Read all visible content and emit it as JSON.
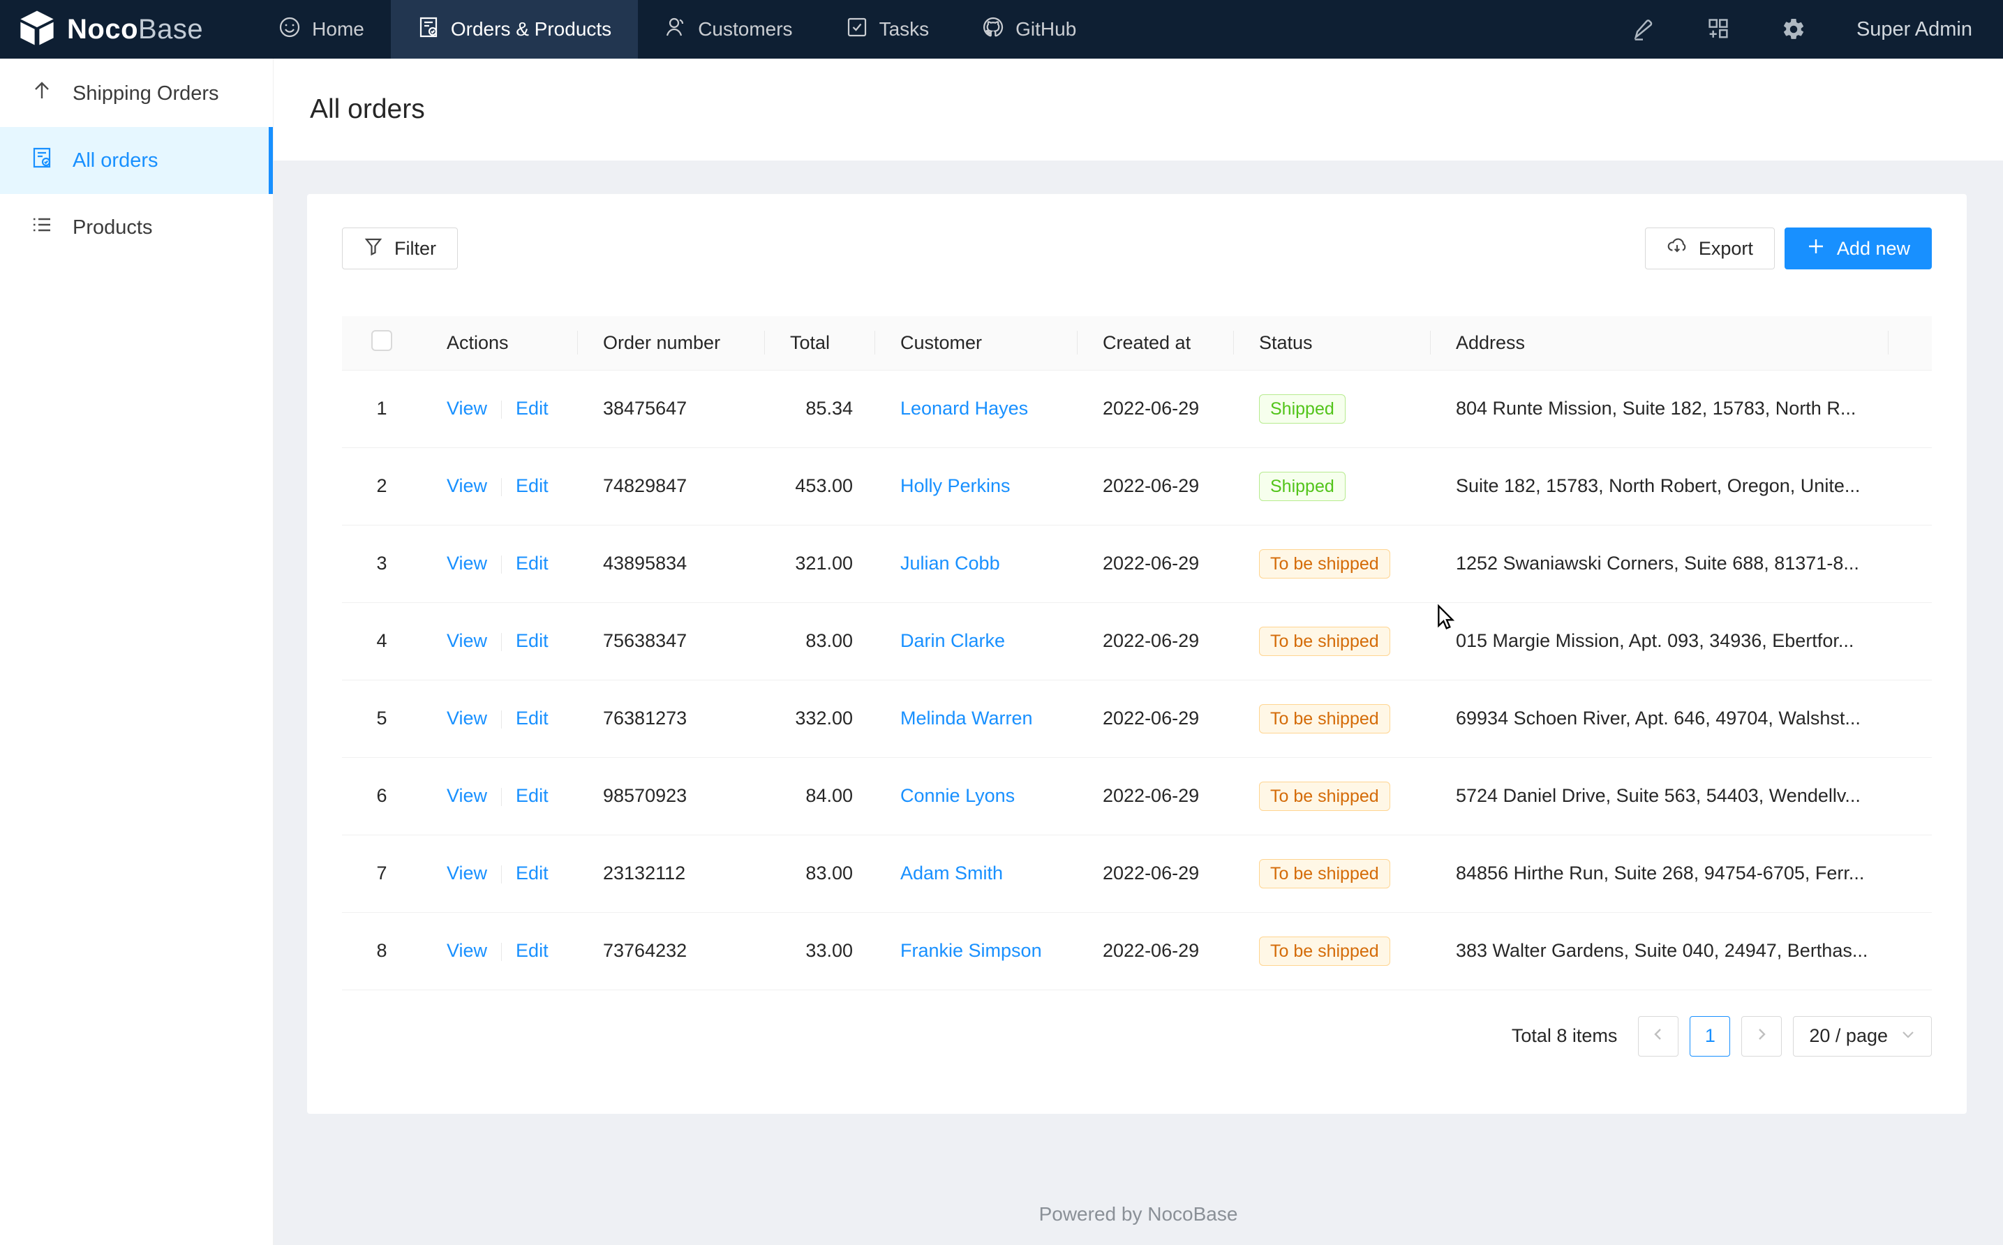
{
  "navbar": {
    "logo": {
      "bold": "Noco",
      "light": "Base",
      "icon": "cube-logo-icon"
    },
    "tabs": [
      {
        "label": "Home",
        "icon": "smile-icon",
        "active": false
      },
      {
        "label": "Orders & Products",
        "icon": "file-check-icon",
        "active": true
      },
      {
        "label": "Customers",
        "icon": "person-icon",
        "active": false
      },
      {
        "label": "Tasks",
        "icon": "check-square-icon",
        "active": false
      },
      {
        "label": "GitHub",
        "icon": "github-icon",
        "active": false
      }
    ],
    "right_icons": [
      "highlighter-icon",
      "add-block-icon",
      "settings-gear-icon"
    ],
    "user": "Super Admin"
  },
  "sidebar": {
    "items": [
      {
        "label": "Shipping Orders",
        "icon": "arrow-up-icon",
        "active": false
      },
      {
        "label": "All orders",
        "icon": "file-check-icon",
        "active": true
      },
      {
        "label": "Products",
        "icon": "list-icon",
        "active": false
      }
    ]
  },
  "page": {
    "title": "All orders"
  },
  "toolbar": {
    "filter_label": "Filter",
    "export_label": "Export",
    "add_new_label": "Add new"
  },
  "table": {
    "columns": [
      "",
      "Actions",
      "Order number",
      "Total",
      "Customer",
      "Created at",
      "Status",
      "Address",
      ""
    ],
    "action_labels": {
      "view": "View",
      "edit": "Edit"
    },
    "rows": [
      {
        "index": 1,
        "order_number": "38475647",
        "total": "85.34",
        "customer": "Leonard Hayes",
        "created_at": "2022-06-29",
        "status": {
          "label": "Shipped",
          "type": "shipped"
        },
        "address": "804 Runte Mission, Suite 182, 15783, North R..."
      },
      {
        "index": 2,
        "order_number": "74829847",
        "total": "453.00",
        "customer": "Holly Perkins",
        "created_at": "2022-06-29",
        "status": {
          "label": "Shipped",
          "type": "shipped"
        },
        "address": "Suite 182, 15783, North Robert, Oregon, Unite..."
      },
      {
        "index": 3,
        "order_number": "43895834",
        "total": "321.00",
        "customer": "Julian Cobb",
        "created_at": "2022-06-29",
        "status": {
          "label": "To be shipped",
          "type": "to-be-shipped"
        },
        "address": "1252 Swaniawski Corners, Suite 688, 81371-8..."
      },
      {
        "index": 4,
        "order_number": "75638347",
        "total": "83.00",
        "customer": "Darin Clarke",
        "created_at": "2022-06-29",
        "status": {
          "label": "To be shipped",
          "type": "to-be-shipped"
        },
        "address": "015 Margie Mission, Apt. 093, 34936, Ebertfor..."
      },
      {
        "index": 5,
        "order_number": "76381273",
        "total": "332.00",
        "customer": "Melinda Warren",
        "created_at": "2022-06-29",
        "status": {
          "label": "To be shipped",
          "type": "to-be-shipped"
        },
        "address": "69934 Schoen River, Apt. 646, 49704, Walshst..."
      },
      {
        "index": 6,
        "order_number": "98570923",
        "total": "84.00",
        "customer": "Connie Lyons",
        "created_at": "2022-06-29",
        "status": {
          "label": "To be shipped",
          "type": "to-be-shipped"
        },
        "address": "5724 Daniel Drive, Suite 563, 54403, Wendellv..."
      },
      {
        "index": 7,
        "order_number": "23132112",
        "total": "83.00",
        "customer": "Adam Smith",
        "created_at": "2022-06-29",
        "status": {
          "label": "To be shipped",
          "type": "to-be-shipped"
        },
        "address": "84856 Hirthe Run, Suite 268, 94754-6705, Ferr..."
      },
      {
        "index": 8,
        "order_number": "73764232",
        "total": "33.00",
        "customer": "Frankie Simpson",
        "created_at": "2022-06-29",
        "status": {
          "label": "To be shipped",
          "type": "to-be-shipped"
        },
        "address": "383 Walter Gardens, Suite 040, 24947, Berthas..."
      }
    ]
  },
  "pagination": {
    "total_text": "Total 8 items",
    "current_page": "1",
    "page_size_label": "20 / page"
  },
  "footer": {
    "text": "Powered by NocoBase"
  },
  "colors": {
    "accent": "#1890ff",
    "navbar_bg": "#0e1f33",
    "navbar_active_bg": "#223650",
    "sidebar_active_bg": "#e6f7ff",
    "badge_green_text": "#52c41a",
    "badge_green_bg": "#f6ffed",
    "badge_green_border": "#b7eb8f",
    "badge_orange_text": "#d46b08",
    "badge_orange_bg": "#fff7e6",
    "badge_orange_border": "#ffd591"
  }
}
